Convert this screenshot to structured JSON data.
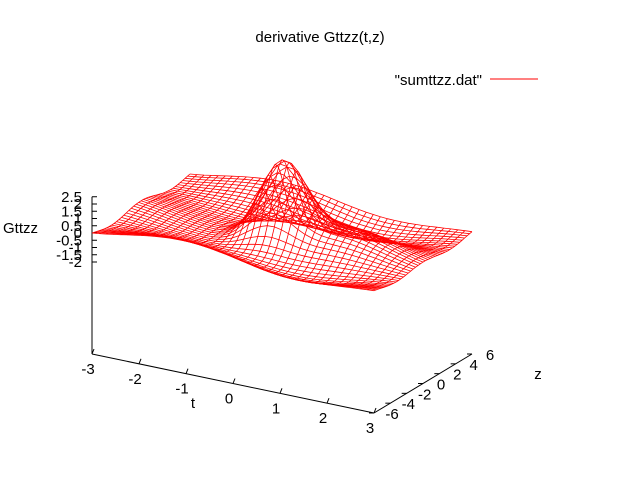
{
  "chart_data": {
    "type": "surface",
    "title": "derivative Gttzz(t,z)",
    "zlabel": "Gttzz",
    "xlabel": "t",
    "ylabel": "z",
    "legend": {
      "entry": "\"sumttzz.dat\"",
      "placement": "top-right",
      "color": "#ff0000"
    },
    "xlim": [
      -3,
      3
    ],
    "ylim": [
      -6,
      6
    ],
    "zlim": [
      -2,
      2.5
    ],
    "xticks": [
      "-3",
      "-2",
      "-1",
      "0",
      "1",
      "2",
      "3"
    ],
    "yticks": [
      "-6",
      "-4",
      "-2",
      "0",
      "2",
      "4",
      "6"
    ],
    "zticks": [
      "2.5",
      "2",
      "1.5",
      "1",
      "0.5",
      "0",
      "-0.5",
      "-1",
      "-1.5",
      "-2"
    ],
    "xtick_values": [
      -3,
      -2,
      -1,
      0,
      1,
      2,
      3
    ],
    "ytick_values": [
      -6,
      -4,
      -2,
      0,
      2,
      4,
      6
    ],
    "ztick_values": [
      2.5,
      2,
      1.5,
      1,
      0.5,
      0,
      -0.5,
      -1,
      -1.5,
      -2
    ],
    "peak_value": 2.4,
    "min_value": -1.7,
    "grid": false,
    "colors": {
      "surface_top": "#ff0000",
      "surface_bottom": "#00c000",
      "axes": "#000000"
    }
  }
}
